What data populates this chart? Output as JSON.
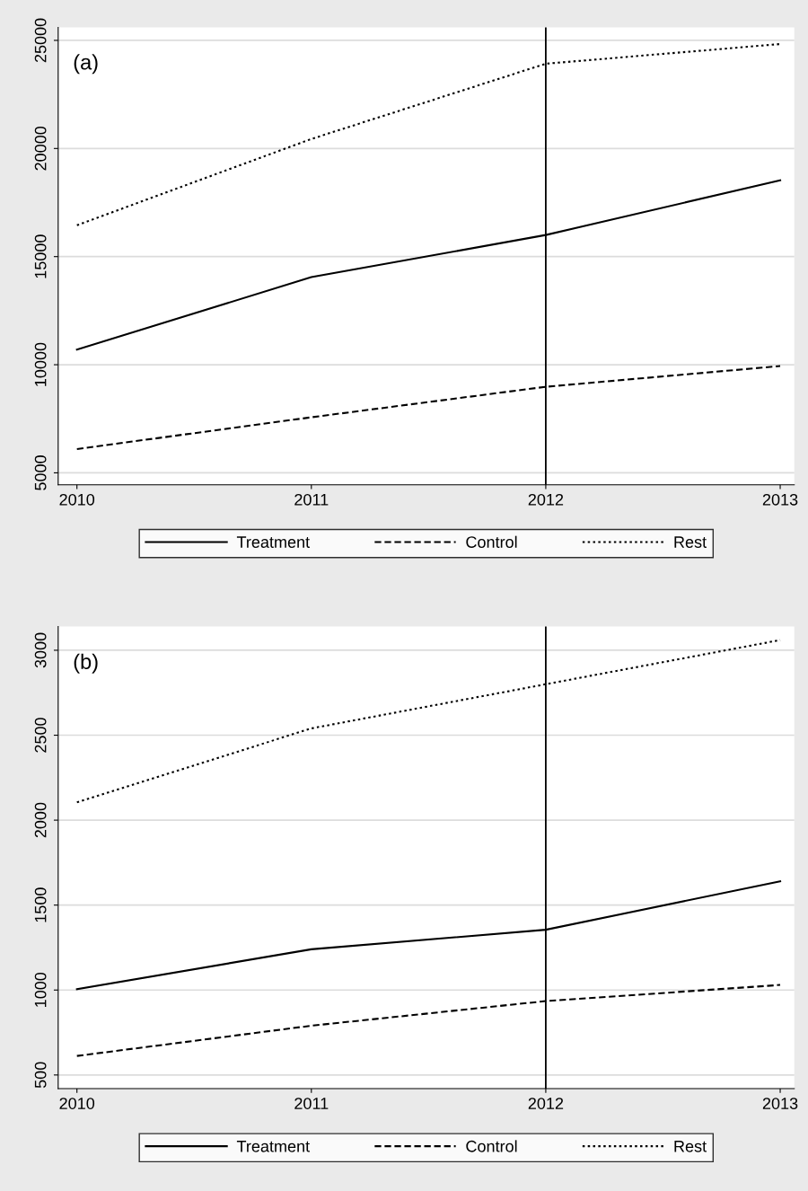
{
  "chart_data": [
    {
      "type": "line",
      "annotations": [
        "(a)"
      ],
      "x": [
        2010,
        2011,
        2012,
        2013
      ],
      "series": [
        {
          "name": "Treatment",
          "color": "#000000",
          "line_style": "solid",
          "values": [
            10700,
            14050,
            16000,
            18530
          ]
        },
        {
          "name": "Control",
          "color": "#000000",
          "line_style": "dashed",
          "values": [
            6100,
            7570,
            8980,
            9940
          ]
        },
        {
          "name": "Rest",
          "color": "#000000",
          "line_style": "dotted",
          "values": [
            16450,
            20440,
            23920,
            24830
          ]
        }
      ],
      "xlim": [
        2009.92,
        2013.06
      ],
      "xticks": [
        2010,
        2011,
        2012,
        2013
      ],
      "ylim": [
        4450,
        25600
      ],
      "yticks": [
        5000,
        10000,
        15000,
        20000,
        25000
      ],
      "ref_lines": [
        {
          "axis": "x",
          "value": 2012,
          "color": "#000000",
          "line_style": "solid"
        }
      ],
      "grid": "y",
      "legend": "bottom",
      "marker": "none"
    },
    {
      "type": "line",
      "annotations": [
        "(b)"
      ],
      "x": [
        2010,
        2011,
        2012,
        2013
      ],
      "series": [
        {
          "name": "Treatment",
          "color": "#000000",
          "line_style": "solid",
          "values": [
            1005,
            1240,
            1355,
            1640
          ]
        },
        {
          "name": "Control",
          "color": "#000000",
          "line_style": "dashed",
          "values": [
            612,
            790,
            935,
            1030
          ]
        },
        {
          "name": "Rest",
          "color": "#000000",
          "line_style": "dotted",
          "values": [
            2105,
            2540,
            2800,
            3060
          ]
        }
      ],
      "xlim": [
        2009.92,
        2013.06
      ],
      "xticks": [
        2010,
        2011,
        2012,
        2013
      ],
      "ylim": [
        420,
        3140
      ],
      "yticks": [
        500,
        1000,
        1500,
        2000,
        2500,
        3000
      ],
      "ref_lines": [
        {
          "axis": "x",
          "value": 2012,
          "color": "#000000",
          "line_style": "solid"
        }
      ],
      "grid": "y",
      "legend": "bottom",
      "marker": "none"
    }
  ]
}
